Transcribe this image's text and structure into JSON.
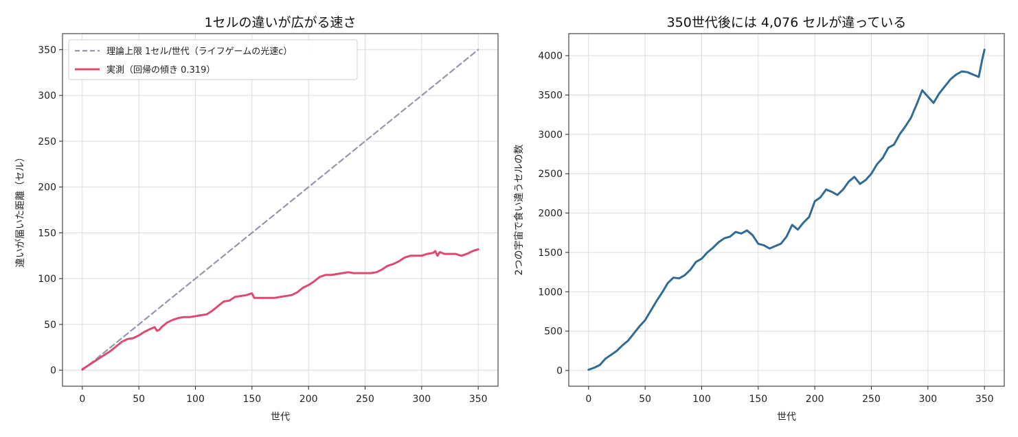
{
  "colors": {
    "theory": "#9297ab",
    "measured": "#e0486f",
    "diff": "#2f6b94",
    "grid": "#dcdcdc",
    "axis": "#222222"
  },
  "chart_data": [
    {
      "type": "line",
      "title": "1セルの違いが広がる速さ",
      "xlabel": "世代",
      "ylabel": "違いが届いた距離（セル）",
      "xlim": [
        -17.5,
        367.5
      ],
      "ylim": [
        -17.5,
        367.5
      ],
      "xticks": [
        0,
        50,
        100,
        150,
        200,
        250,
        300,
        350
      ],
      "yticks": [
        0,
        50,
        100,
        150,
        200,
        250,
        300,
        350
      ],
      "grid": true,
      "legend": "top-left",
      "series": [
        {
          "name": "理論上限 1セル/世代（ライフゲームの光速c）",
          "style": "dashed",
          "x": [
            0,
            350
          ],
          "y": [
            0,
            350
          ]
        },
        {
          "name": "実測（回帰の傾き 0.319）",
          "style": "solid",
          "x": [
            0,
            5,
            10,
            15,
            20,
            25,
            30,
            35,
            40,
            45,
            50,
            55,
            60,
            64,
            66,
            68,
            70,
            75,
            80,
            85,
            90,
            95,
            100,
            105,
            110,
            115,
            120,
            125,
            130,
            135,
            140,
            145,
            150,
            152,
            155,
            160,
            165,
            170,
            175,
            180,
            185,
            190,
            195,
            200,
            205,
            210,
            215,
            220,
            225,
            230,
            235,
            240,
            245,
            250,
            255,
            260,
            265,
            270,
            275,
            280,
            285,
            290,
            295,
            300,
            305,
            310,
            312,
            314,
            316,
            320,
            325,
            330,
            335,
            340,
            345,
            350
          ],
          "y": [
            1,
            5,
            9,
            13,
            17,
            21,
            26,
            31,
            34,
            35,
            38,
            42,
            45,
            47,
            43,
            44,
            47,
            52,
            55,
            57,
            58,
            58,
            59,
            60,
            61,
            65,
            70,
            75,
            76,
            80,
            81,
            82,
            84,
            79,
            79,
            79,
            79,
            79,
            80,
            81,
            82,
            85,
            90,
            93,
            97,
            102,
            104,
            104,
            105,
            106,
            107,
            106,
            106,
            106,
            106,
            107,
            110,
            114,
            116,
            119,
            123,
            125,
            125,
            125,
            127,
            128,
            130,
            125,
            129,
            127,
            127,
            127,
            125,
            127,
            130,
            132
          ]
        }
      ]
    },
    {
      "type": "line",
      "title": "350世代後には 4,076 セルが違っている",
      "xlabel": "世代",
      "ylabel": "2つの宇宙で食い違うセルの数",
      "xlim": [
        -17.5,
        367.5
      ],
      "ylim": [
        -200,
        4280
      ],
      "xticks": [
        0,
        50,
        100,
        150,
        200,
        250,
        300,
        350
      ],
      "yticks": [
        0,
        500,
        1000,
        1500,
        2000,
        2500,
        3000,
        3500,
        4000
      ],
      "grid": true,
      "series": [
        {
          "style": "solid",
          "x": [
            0,
            5,
            10,
            15,
            20,
            25,
            30,
            35,
            40,
            45,
            50,
            55,
            60,
            65,
            70,
            75,
            80,
            85,
            90,
            95,
            100,
            105,
            110,
            115,
            120,
            125,
            130,
            135,
            140,
            145,
            150,
            155,
            160,
            165,
            170,
            175,
            180,
            185,
            190,
            195,
            200,
            205,
            210,
            215,
            220,
            225,
            230,
            235,
            240,
            245,
            250,
            255,
            260,
            265,
            270,
            275,
            280,
            285,
            290,
            295,
            300,
            305,
            310,
            315,
            320,
            325,
            330,
            335,
            340,
            345,
            348,
            350
          ],
          "y": [
            10,
            35,
            70,
            150,
            200,
            250,
            320,
            380,
            470,
            560,
            640,
            760,
            880,
            990,
            1110,
            1180,
            1170,
            1210,
            1280,
            1380,
            1420,
            1500,
            1560,
            1630,
            1680,
            1700,
            1760,
            1740,
            1780,
            1720,
            1610,
            1590,
            1550,
            1580,
            1610,
            1700,
            1850,
            1790,
            1880,
            1950,
            2150,
            2200,
            2300,
            2270,
            2230,
            2300,
            2400,
            2460,
            2370,
            2420,
            2500,
            2620,
            2700,
            2830,
            2870,
            3000,
            3100,
            3210,
            3380,
            3560,
            3480,
            3400,
            3520,
            3610,
            3700,
            3760,
            3800,
            3790,
            3760,
            3730,
            3950,
            4076
          ]
        }
      ]
    }
  ]
}
